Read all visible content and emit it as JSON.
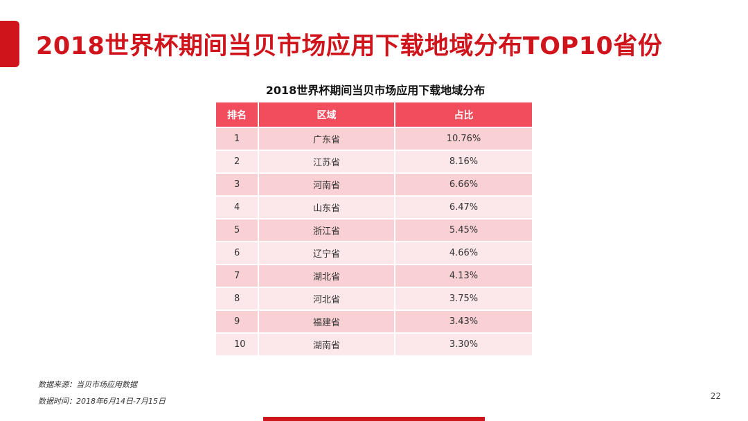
{
  "slide": {
    "title": "2018世界杯期间当贝市场应用下载地域分布TOP10省份",
    "page_number": "22",
    "accent_color": "#d0141c"
  },
  "table": {
    "caption": "2018世界杯期间当贝市场应用下载地域分布",
    "header_color": "#f24d5d",
    "columns": [
      "排名",
      "区域",
      "占比"
    ],
    "rows": [
      {
        "rank": "1",
        "region": "广东省",
        "share": "10.76%"
      },
      {
        "rank": "2",
        "region": "江苏省",
        "share": "8.16%"
      },
      {
        "rank": "3",
        "region": "河南省",
        "share": "6.66%"
      },
      {
        "rank": "4",
        "region": "山东省",
        "share": "6.47%"
      },
      {
        "rank": "5",
        "region": "浙江省",
        "share": "5.45%"
      },
      {
        "rank": "6",
        "region": "辽宁省",
        "share": "4.66%"
      },
      {
        "rank": "7",
        "region": "湖北省",
        "share": "4.13%"
      },
      {
        "rank": "8",
        "region": "河北省",
        "share": "3.75%"
      },
      {
        "rank": "9",
        "region": "福建省",
        "share": "3.43%"
      },
      {
        "rank": "10",
        "region": "湖南省",
        "share": "3.30%"
      }
    ]
  },
  "footnotes": {
    "source": "数据来源：当贝市场应用数据",
    "period": "数据时间：2018年6月14日-7月15日"
  }
}
